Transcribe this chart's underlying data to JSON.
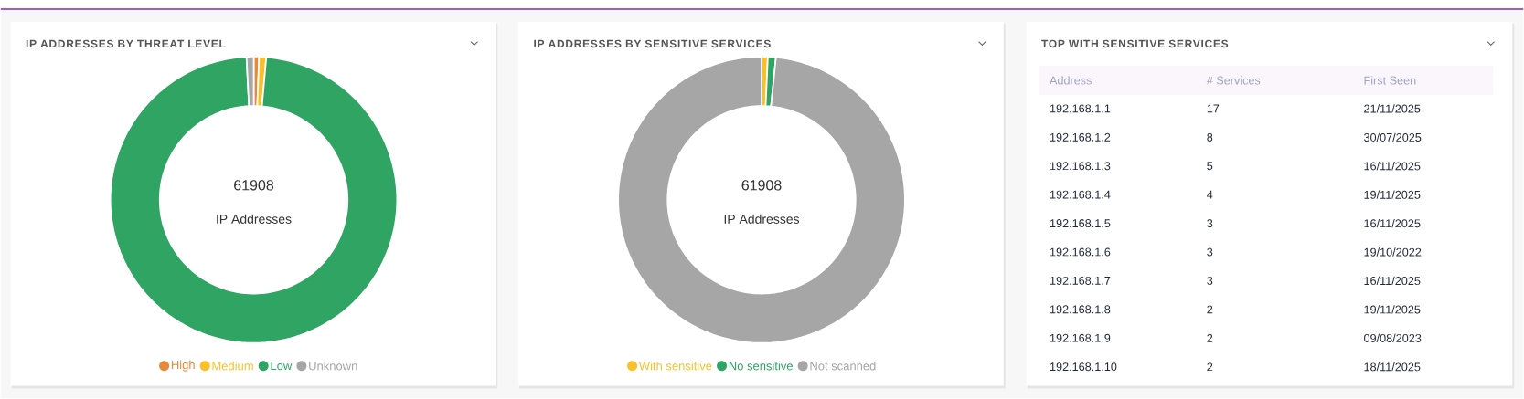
{
  "chart_data": [
    {
      "type": "donut",
      "title": "IP ADDRESSES BY THREAT LEVEL",
      "categories": [
        "High",
        "Medium",
        "Low",
        "Unknown"
      ],
      "values": [
        0.6,
        0.8,
        97.8,
        0.8
      ],
      "colors": [
        "#e8883a",
        "#f9c02a",
        "#2fa463",
        "#a6a6a6"
      ],
      "legend": "bottom",
      "annotations": [
        "61908",
        "IP Addresses"
      ]
    },
    {
      "type": "donut",
      "title": "IP ADDRESSES BY SENSITIVE SERVICES",
      "categories": [
        "With sensitive",
        "No sensitive",
        "Not scanned"
      ],
      "values": [
        0.7,
        0.9,
        98.4
      ],
      "colors": [
        "#f9c02a",
        "#2fa463",
        "#a6a6a6"
      ],
      "legend": "bottom",
      "annotations": [
        "61908",
        "IP Addresses"
      ]
    },
    {
      "type": "other",
      "title": "TOP WITH SENSITIVE SERVICES",
      "categories": [
        "Address",
        "# Services",
        "First Seen"
      ],
      "annotations": [
        "192.168.1.1",
        "17",
        "21/11/2025",
        "192.168.1.2",
        "8",
        "30/07/2025",
        "192.168.1.3",
        "5",
        "16/11/2025",
        "192.168.1.4",
        "4",
        "19/11/2025",
        "192.168.1.5",
        "3",
        "16/11/2025",
        "192.168.1.6",
        "3",
        "19/10/2022",
        "192.168.1.7",
        "3",
        "16/11/2025",
        "192.168.1.8",
        "2",
        "19/11/2025",
        "192.168.1.9",
        "2",
        "09/08/2023",
        "192.168.1.10",
        "2",
        "18/11/2025"
      ]
    }
  ]
}
